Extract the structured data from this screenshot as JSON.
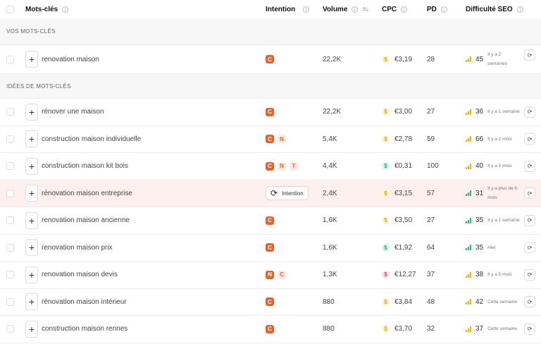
{
  "header": {
    "keywords_label": "Mots-clés",
    "intent_label": "Intention",
    "volume_label": "Volume",
    "sort_icon": "≡↓",
    "cpc_label": "CPC",
    "pd_label": "PD",
    "seo_label": "Difficulté SEO"
  },
  "sections": {
    "yours": "VOS MOTS-CLÉS",
    "ideas": "IDÉES DE MOTS-CLÉS"
  },
  "icons": {
    "plus": "+",
    "dollar": "$",
    "refresh": "⟳"
  },
  "colors": {
    "intent_orange": "#e8622c",
    "cpc_yellow": "#e6a700",
    "cpc_green": "#26b573",
    "cpc_red": "#e2426b",
    "seo_yellow": "#f1b400",
    "seo_green": "#2dbb7a",
    "highlight_row": "#fdf0ef"
  },
  "your_keywords": [
    {
      "keyword": "renovation maison",
      "intents": [
        "C"
      ],
      "volume": "22,2K",
      "cpc": "€3,19",
      "cpc_color": "yellow",
      "pd": "28",
      "seo": "45",
      "seo_color": "yellow",
      "updated": "Il y a 2 semaines"
    }
  ],
  "idea_keywords": [
    {
      "keyword": "rénover une maison",
      "intents": [
        "C"
      ],
      "volume": "22,2K",
      "cpc": "€3,00",
      "cpc_color": "yellow",
      "pd": "27",
      "seo": "36",
      "seo_color": "yellow",
      "updated": "Il y a 1 semaine"
    },
    {
      "keyword": "construction maison individuelle",
      "intents": [
        "C",
        "N"
      ],
      "volume": "5,4K",
      "cpc": "€2,78",
      "cpc_color": "yellow",
      "pd": "59",
      "seo": "66",
      "seo_color": "yellow",
      "updated": "Il y a 2 mois"
    },
    {
      "keyword": "construction maison kit bois",
      "intents": [
        "C",
        "N",
        "T"
      ],
      "volume": "4,4K",
      "cpc": "€0,31",
      "cpc_color": "green",
      "pd": "100",
      "seo": "40",
      "seo_color": "yellow",
      "updated": "Il y a 5 mois"
    },
    {
      "keyword": "rénovation maison entreprise",
      "intent_button": "Intention",
      "volume": "2,4K",
      "cpc": "€3,15",
      "cpc_color": "yellow",
      "pd": "57",
      "seo": "31",
      "seo_color": "green",
      "updated": "Il y a plus de 6 mois"
    },
    {
      "keyword": "renovation maison ancienne",
      "intents": [
        "C"
      ],
      "volume": "1,6K",
      "cpc": "€3,50",
      "cpc_color": "yellow",
      "pd": "27",
      "seo": "35",
      "seo_color": "green",
      "updated": "Il y a 1 semaine"
    },
    {
      "keyword": "renovation maison prix",
      "intents": [
        "C"
      ],
      "volume": "1,6K",
      "cpc": "€1,92",
      "cpc_color": "green",
      "pd": "64",
      "seo": "35",
      "seo_color": "green",
      "updated": "Hier"
    },
    {
      "keyword": "renovation maison devis",
      "intents": [
        "N",
        "C"
      ],
      "volume": "1,3K",
      "cpc": "€12,27",
      "cpc_color": "red",
      "pd": "37",
      "seo": "38",
      "seo_color": "yellow",
      "updated": "Il y a 5 mois"
    },
    {
      "keyword": "rénovation maison intérieur",
      "intents": [
        "C"
      ],
      "volume": "880",
      "cpc": "€3,84",
      "cpc_color": "yellow",
      "pd": "48",
      "seo": "42",
      "seo_color": "yellow",
      "updated": "Cette semaine"
    },
    {
      "keyword": "construction maison rennes",
      "intents": [
        "C"
      ],
      "volume": "880",
      "cpc": "€3,70",
      "cpc_color": "yellow",
      "pd": "32",
      "seo": "37",
      "seo_color": "yellow",
      "updated": "Cette semaine"
    }
  ]
}
